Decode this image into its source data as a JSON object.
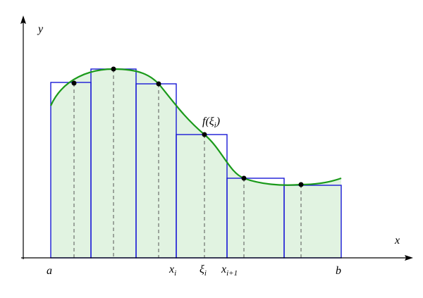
{
  "axes": {
    "y": "y",
    "x": "x"
  },
  "labels": [
    {
      "base": "a"
    },
    {
      "base": "x",
      "sub": "i"
    },
    {
      "base": "ξ",
      "sub": "i"
    },
    {
      "base": "x",
      "sub": "i+1"
    },
    {
      "base": "b"
    }
  ],
  "annotation": {
    "base": "f(ξ",
    "sub": "i",
    "close": ")"
  }
}
